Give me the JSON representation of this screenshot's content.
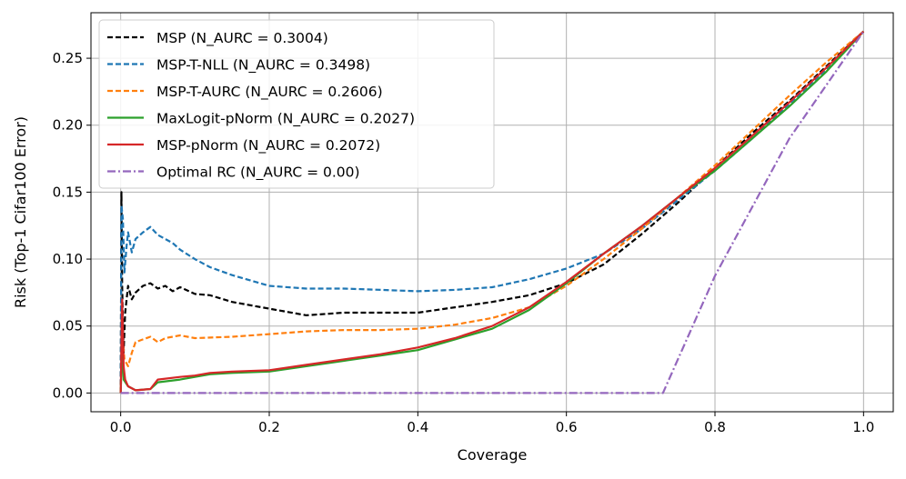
{
  "chart_data": {
    "type": "line",
    "xlabel": "Coverage",
    "ylabel": "Risk (Top-1 Cifar100 Error)",
    "xlim": [
      -0.04,
      1.04
    ],
    "ylim": [
      -0.014,
      0.284
    ],
    "x_ticks": [
      "0.0",
      "0.2",
      "0.4",
      "0.6",
      "0.8",
      "1.0"
    ],
    "y_ticks": [
      "0.00",
      "0.05",
      "0.10",
      "0.15",
      "0.20",
      "0.25"
    ],
    "grid": true,
    "legend_position": "upper-left",
    "series": [
      {
        "name": "MSP (N_AURC = 0.3004)",
        "color": "#000000",
        "dash": "dashed",
        "points": [
          [
            0.0,
            0.0
          ],
          [
            0.001,
            0.15
          ],
          [
            0.002,
            0.08
          ],
          [
            0.004,
            0.03
          ],
          [
            0.006,
            0.06
          ],
          [
            0.01,
            0.08
          ],
          [
            0.015,
            0.07
          ],
          [
            0.02,
            0.075
          ],
          [
            0.03,
            0.08
          ],
          [
            0.04,
            0.082
          ],
          [
            0.05,
            0.078
          ],
          [
            0.06,
            0.08
          ],
          [
            0.07,
            0.076
          ],
          [
            0.08,
            0.079
          ],
          [
            0.1,
            0.074
          ],
          [
            0.12,
            0.073
          ],
          [
            0.15,
            0.068
          ],
          [
            0.2,
            0.063
          ],
          [
            0.25,
            0.058
          ],
          [
            0.3,
            0.06
          ],
          [
            0.35,
            0.06
          ],
          [
            0.4,
            0.06
          ],
          [
            0.45,
            0.064
          ],
          [
            0.5,
            0.068
          ],
          [
            0.55,
            0.073
          ],
          [
            0.6,
            0.082
          ],
          [
            0.65,
            0.096
          ],
          [
            0.7,
            0.118
          ],
          [
            0.75,
            0.142
          ],
          [
            0.8,
            0.168
          ],
          [
            0.85,
            0.194
          ],
          [
            0.9,
            0.218
          ],
          [
            0.95,
            0.244
          ],
          [
            1.0,
            0.27
          ]
        ]
      },
      {
        "name": "MSP-T-NLL (N_AURC = 0.3498)",
        "color": "#1f77b4",
        "dash": "dashed",
        "points": [
          [
            0.0,
            0.0
          ],
          [
            0.001,
            0.14
          ],
          [
            0.003,
            0.13
          ],
          [
            0.005,
            0.09
          ],
          [
            0.008,
            0.11
          ],
          [
            0.01,
            0.12
          ],
          [
            0.015,
            0.105
          ],
          [
            0.02,
            0.115
          ],
          [
            0.03,
            0.12
          ],
          [
            0.04,
            0.124
          ],
          [
            0.05,
            0.118
          ],
          [
            0.06,
            0.115
          ],
          [
            0.07,
            0.112
          ],
          [
            0.08,
            0.107
          ],
          [
            0.1,
            0.1
          ],
          [
            0.12,
            0.094
          ],
          [
            0.15,
            0.088
          ],
          [
            0.2,
            0.08
          ],
          [
            0.25,
            0.078
          ],
          [
            0.3,
            0.078
          ],
          [
            0.35,
            0.077
          ],
          [
            0.4,
            0.076
          ],
          [
            0.45,
            0.077
          ],
          [
            0.5,
            0.079
          ],
          [
            0.55,
            0.085
          ],
          [
            0.6,
            0.093
          ],
          [
            0.65,
            0.104
          ],
          [
            0.7,
            0.122
          ],
          [
            0.75,
            0.144
          ],
          [
            0.8,
            0.166
          ],
          [
            0.85,
            0.19
          ],
          [
            0.9,
            0.216
          ],
          [
            0.95,
            0.242
          ],
          [
            1.0,
            0.27
          ]
        ]
      },
      {
        "name": "MSP-T-AURC (N_AURC = 0.2606)",
        "color": "#ff7f0e",
        "dash": "dashed",
        "points": [
          [
            0.0,
            0.0
          ],
          [
            0.002,
            0.045
          ],
          [
            0.005,
            0.025
          ],
          [
            0.01,
            0.02
          ],
          [
            0.015,
            0.03
          ],
          [
            0.02,
            0.038
          ],
          [
            0.03,
            0.04
          ],
          [
            0.04,
            0.042
          ],
          [
            0.05,
            0.038
          ],
          [
            0.06,
            0.041
          ],
          [
            0.08,
            0.043
          ],
          [
            0.1,
            0.041
          ],
          [
            0.15,
            0.042
          ],
          [
            0.2,
            0.044
          ],
          [
            0.25,
            0.046
          ],
          [
            0.3,
            0.047
          ],
          [
            0.35,
            0.047
          ],
          [
            0.4,
            0.048
          ],
          [
            0.45,
            0.051
          ],
          [
            0.5,
            0.056
          ],
          [
            0.55,
            0.064
          ],
          [
            0.6,
            0.08
          ],
          [
            0.65,
            0.1
          ],
          [
            0.7,
            0.122
          ],
          [
            0.75,
            0.146
          ],
          [
            0.8,
            0.17
          ],
          [
            0.85,
            0.196
          ],
          [
            0.9,
            0.222
          ],
          [
            0.95,
            0.247
          ],
          [
            1.0,
            0.27
          ]
        ]
      },
      {
        "name": "MaxLogit-pNorm (N_AURC = 0.2027)",
        "color": "#2ca02c",
        "dash": "solid",
        "points": [
          [
            0.0,
            0.0
          ],
          [
            0.002,
            0.04
          ],
          [
            0.004,
            0.01
          ],
          [
            0.01,
            0.005
          ],
          [
            0.02,
            0.002
          ],
          [
            0.04,
            0.003
          ],
          [
            0.05,
            0.008
          ],
          [
            0.08,
            0.01
          ],
          [
            0.1,
            0.012
          ],
          [
            0.12,
            0.014
          ],
          [
            0.15,
            0.015
          ],
          [
            0.2,
            0.016
          ],
          [
            0.25,
            0.02
          ],
          [
            0.3,
            0.024
          ],
          [
            0.35,
            0.028
          ],
          [
            0.4,
            0.032
          ],
          [
            0.45,
            0.04
          ],
          [
            0.5,
            0.048
          ],
          [
            0.55,
            0.062
          ],
          [
            0.6,
            0.082
          ],
          [
            0.65,
            0.104
          ],
          [
            0.7,
            0.124
          ],
          [
            0.75,
            0.146
          ],
          [
            0.8,
            0.166
          ],
          [
            0.85,
            0.19
          ],
          [
            0.9,
            0.214
          ],
          [
            0.95,
            0.24
          ],
          [
            1.0,
            0.27
          ]
        ]
      },
      {
        "name": "MSP-pNorm (N_AURC = 0.2072)",
        "color": "#d62728",
        "dash": "solid",
        "points": [
          [
            0.0,
            0.0
          ],
          [
            0.002,
            0.07
          ],
          [
            0.004,
            0.02
          ],
          [
            0.006,
            0.01
          ],
          [
            0.01,
            0.005
          ],
          [
            0.02,
            0.002
          ],
          [
            0.04,
            0.003
          ],
          [
            0.05,
            0.01
          ],
          [
            0.08,
            0.012
          ],
          [
            0.1,
            0.013
          ],
          [
            0.12,
            0.015
          ],
          [
            0.15,
            0.016
          ],
          [
            0.2,
            0.017
          ],
          [
            0.25,
            0.021
          ],
          [
            0.3,
            0.025
          ],
          [
            0.35,
            0.029
          ],
          [
            0.4,
            0.034
          ],
          [
            0.45,
            0.041
          ],
          [
            0.5,
            0.05
          ],
          [
            0.55,
            0.064
          ],
          [
            0.6,
            0.083
          ],
          [
            0.65,
            0.104
          ],
          [
            0.7,
            0.124
          ],
          [
            0.75,
            0.146
          ],
          [
            0.8,
            0.168
          ],
          [
            0.85,
            0.192
          ],
          [
            0.9,
            0.217
          ],
          [
            0.95,
            0.243
          ],
          [
            1.0,
            0.27
          ]
        ]
      },
      {
        "name": "Optimal RC (N_AURC = 0.00)",
        "color": "#9467bd",
        "dash": "dashdot",
        "points": [
          [
            0.0,
            0.0
          ],
          [
            0.73,
            0.0
          ],
          [
            0.8,
            0.0875
          ],
          [
            0.9,
            0.19
          ],
          [
            1.0,
            0.27
          ]
        ]
      }
    ]
  }
}
